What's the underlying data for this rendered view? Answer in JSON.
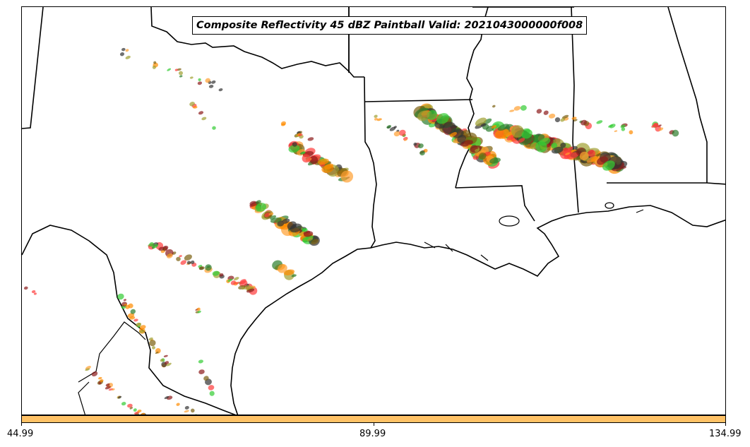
{
  "title": "Composite Reflectivity 45 dBZ Paintball Valid: 2021043000000f008",
  "colorbar": {
    "color": "#ffc266",
    "ticks": [
      "44.99",
      "89.99",
      "134.99"
    ]
  },
  "palette": [
    "#ff3b3b",
    "#2c7d2c",
    "#ff8c00",
    "#8b1a1a",
    "#a0a030",
    "#33cc33",
    "#ffa030",
    "#333333",
    "#7a6010"
  ]
}
